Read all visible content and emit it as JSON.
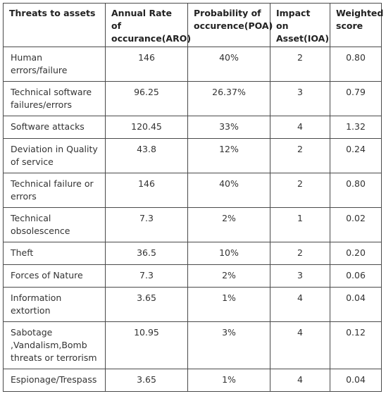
{
  "table": {
    "headers": [
      "Threats to assets",
      "Annual Rate of occurance(ARO)",
      "Probability of occurence(POA)",
      "Impact on Asset(IOA)",
      "Weighted score"
    ],
    "rows": [
      [
        "Human errors/failure",
        "146",
        "40%",
        "2",
        "0.80"
      ],
      [
        "Technical software failures/errors",
        "96.25",
        "26.37%",
        "3",
        "0.79"
      ],
      [
        "Software attacks",
        "120.45",
        "33%",
        "4",
        "1.32"
      ],
      [
        "Deviation in Quality of service",
        "43.8",
        "12%",
        "2",
        "0.24"
      ],
      [
        "Technical failure or errors",
        "146",
        "40%",
        "2",
        "0.80"
      ],
      [
        "Technical obsolescence",
        "7.3",
        "2%",
        "1",
        "0.02"
      ],
      [
        "Theft",
        "36.5",
        "10%",
        "2",
        "0.20"
      ],
      [
        "Forces of Nature",
        "7.3",
        "2%",
        "3",
        "0.06"
      ],
      [
        "Information extortion",
        "3.65",
        "1%",
        "4",
        "0.04"
      ],
      [
        "Sabotage ,Vandalism,Bomb threats or terrorism",
        "10.95",
        "3%",
        "4",
        "0.12"
      ],
      [
        "Espionage/Trespass",
        "3.65",
        "1%",
        "4",
        "0.04"
      ]
    ]
  }
}
